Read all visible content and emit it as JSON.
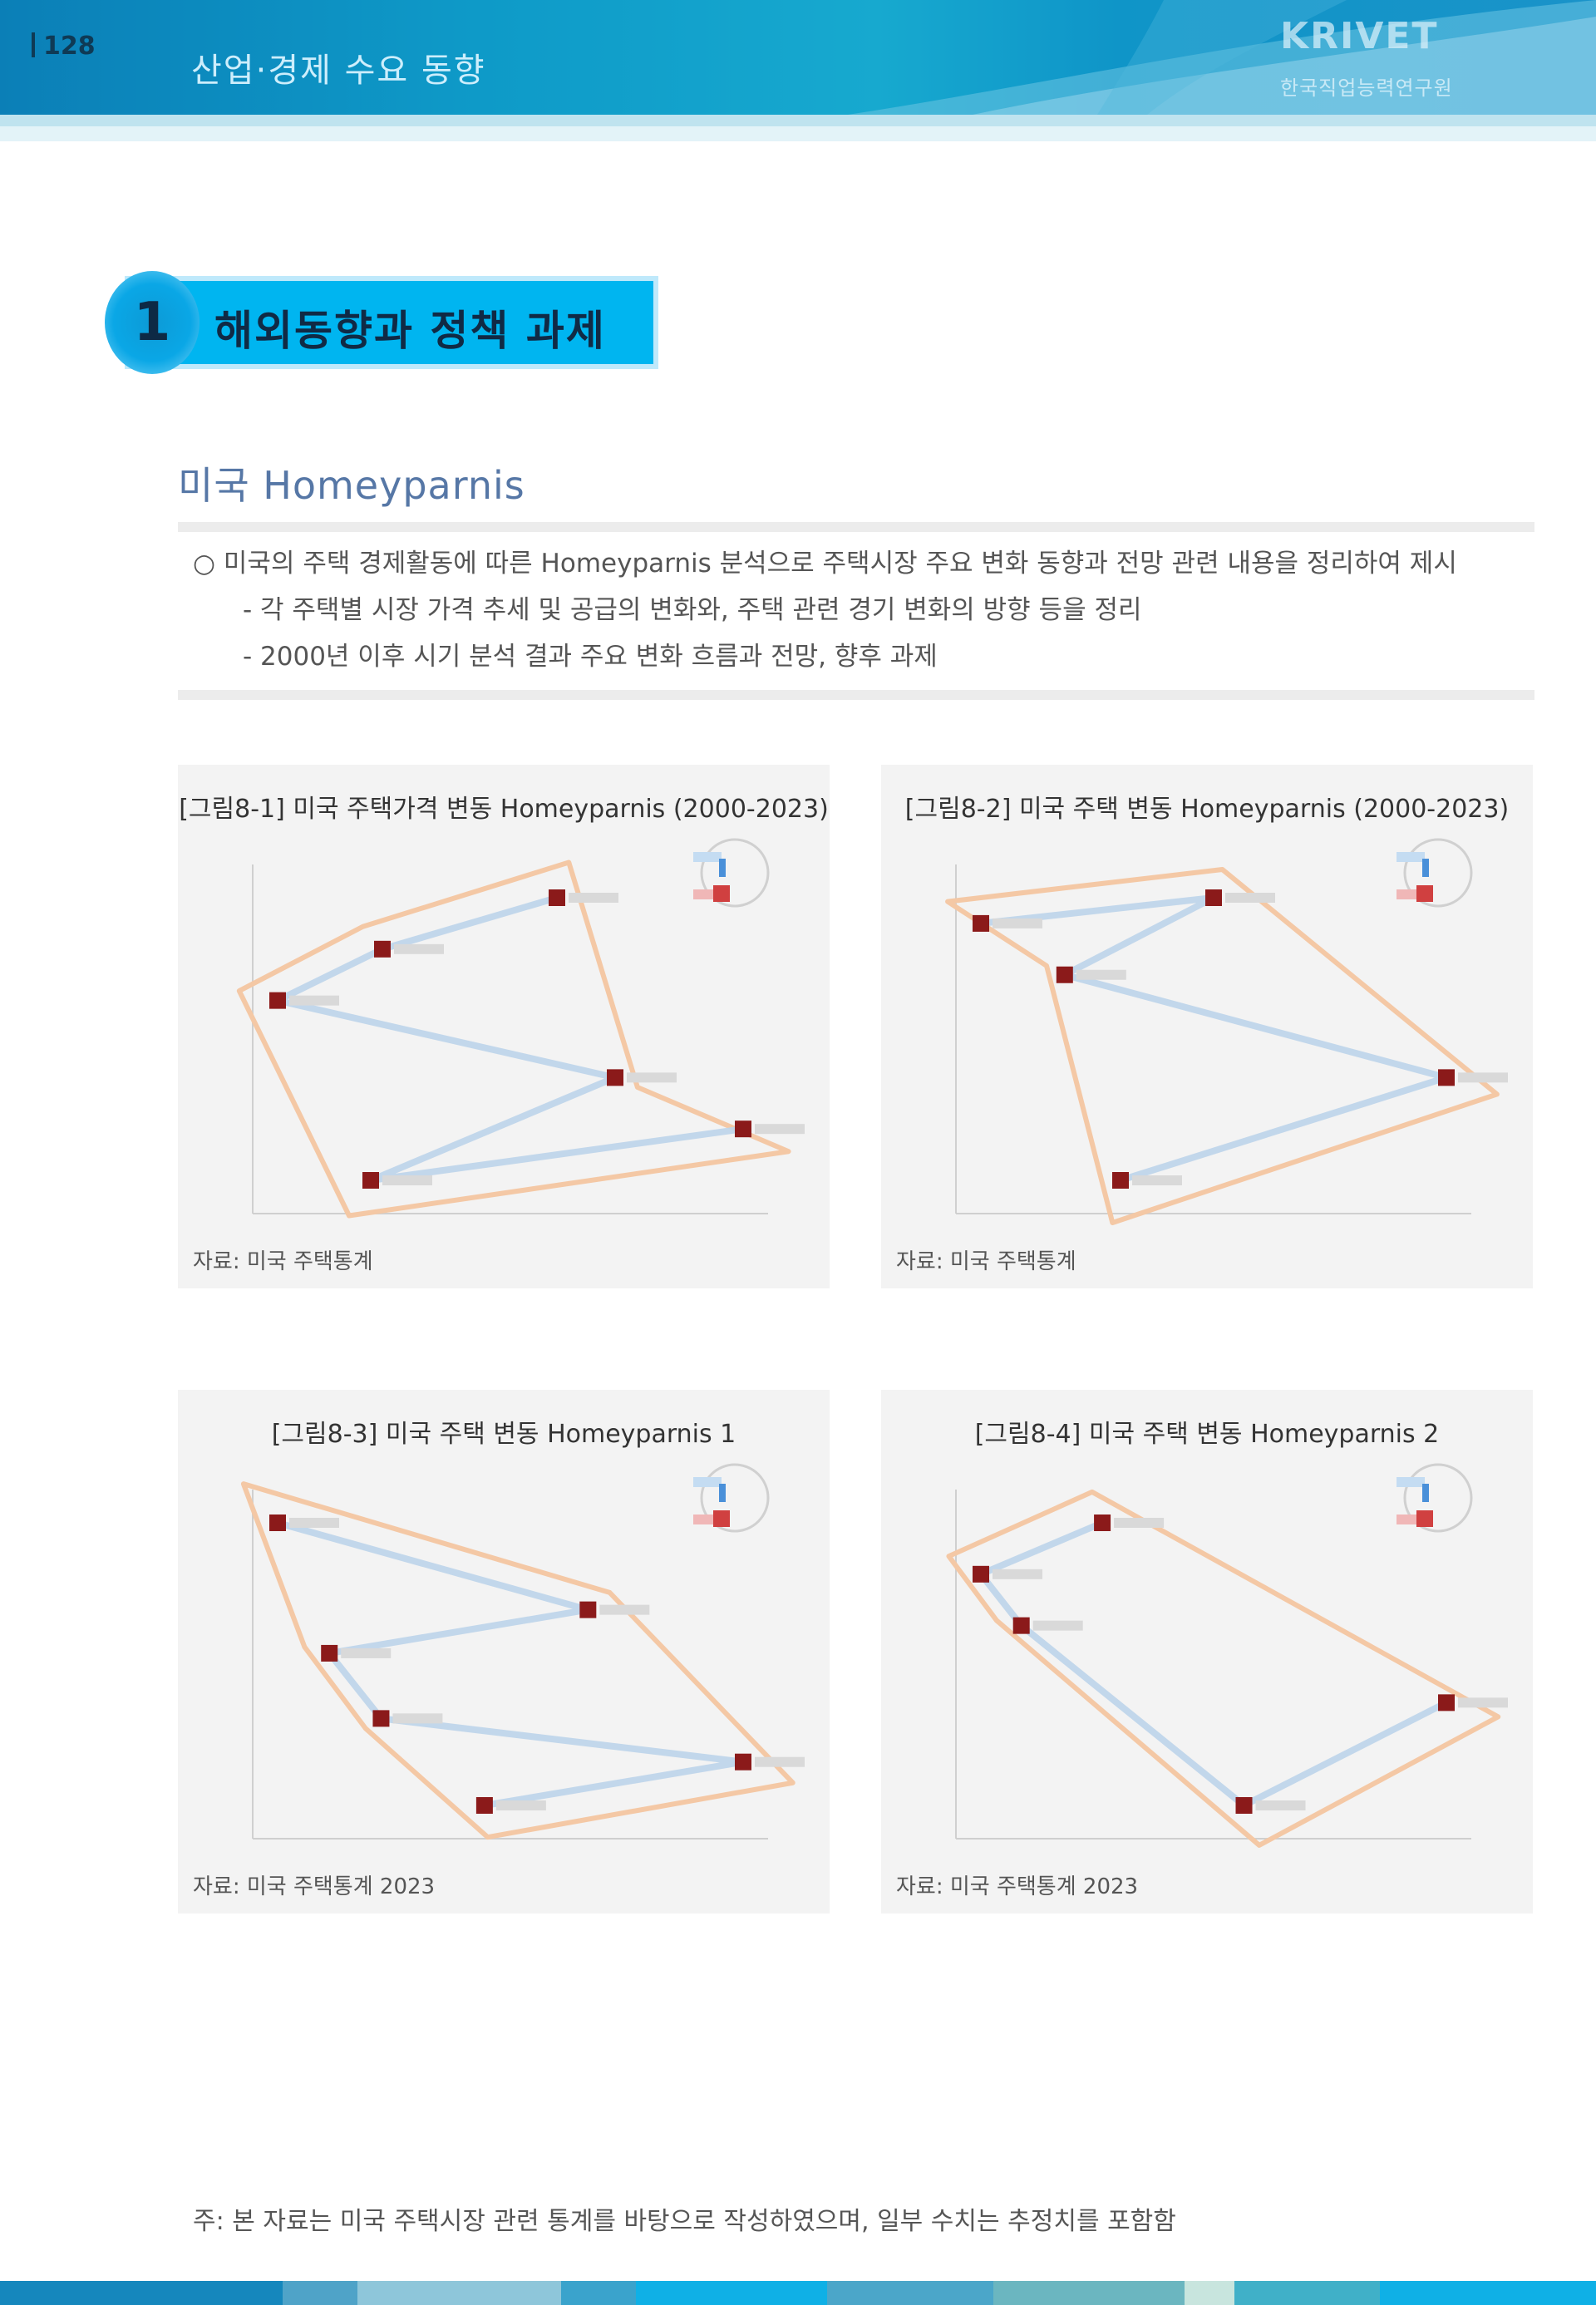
{
  "header": {
    "page_number": "128",
    "title": "산업·경제 수요 동향",
    "logo_main": "KRIVET",
    "logo_sub": "한국직업능력연구원"
  },
  "section": {
    "number": "1",
    "title": "해외동향과 정책 과제"
  },
  "subheading": "미국 Homeyparnis",
  "bullets": [
    "○ 미국의 주택 경제활동에 따른 Homeyparnis 분석으로 주택시장 주요 변화 동향과 전망 관련 내용을 정리하여 제시",
    "- 각 주택별 시장 가격 추세 및 공급의 변화와, 주택 관련 경기 변화의 방향 등을 정리",
    "- 2000년 이후 시기 분석 결과 주요 변화 흐름과 전망, 향후 과제"
  ],
  "panels": [
    {
      "title": "[그림8-1] 미국 주택가격 변동 Homeyparnis (2000-2023)",
      "source": "자료: 미국 주택통계"
    },
    {
      "title": "[그림8-2] 미국 주택 변동 Homeyparnis (2000-2023)",
      "source": "자료: 미국 주택통계"
    },
    {
      "title": "[그림8-3] 미국 주택 변동 Homeyparnis 1",
      "source": "자료: 미국 주택통계 2023"
    },
    {
      "title": "[그림8-4] 미국 주택 변동 Homeyparnis 2",
      "source": "자료: 미국 주택통계 2023"
    }
  ],
  "footnote": "주: 본 자료는 미국 주택시장 관련 통계를 바탕으로 작성하였으며, 일부 수치는 추정치를 포함함",
  "colors": {
    "accent": "#00b5f0",
    "series_line": "#bcd4ea",
    "envelope": "#f4c8a5",
    "marker": "#8b1a1a",
    "legend_blue": "#4a90d9",
    "legend_red": "#d04040"
  },
  "chart_data": [
    {
      "type": "scatter",
      "title": "[그림8-1] 미국 주택가격 변동 Homeyparnis (2000-2023)",
      "series": [
        {
          "values": [
            [
              3.9,
              5.65
            ],
            [
              2.4,
              5.55
            ],
            [
              1.5,
              5.45
            ],
            [
              4.4,
              5.3
            ],
            [
              2.3,
              5.1
            ],
            [
              5.5,
              5.2
            ]
          ]
        }
      ]
    },
    {
      "type": "scatter",
      "title": "[그림8-2] 미국 주택 변동 Homeyparnis (2000-2023)",
      "series": [
        {
          "values": [
            [
              2.0,
              5.6
            ],
            [
              7.0,
              5.65
            ],
            [
              3.8,
              5.5
            ],
            [
              12.0,
              5.3
            ],
            [
              5.0,
              5.1
            ]
          ]
        }
      ]
    },
    {
      "type": "scatter",
      "title": "[그림8-3] 미국 주택 변동 Homeyparnis 1",
      "series": [
        {
          "values": [
            [
              1.0,
              6.2
            ],
            [
              7.0,
              5.8
            ],
            [
              2.0,
              5.6
            ],
            [
              3.0,
              5.3
            ],
            [
              10.0,
              5.1
            ],
            [
              5.0,
              4.9
            ]
          ]
        }
      ]
    },
    {
      "type": "scatter",
      "title": "[그림8-4] 미국 주택 변동 Homeyparnis 2",
      "series": [
        {
          "values": [
            [
              4.5,
              6.1
            ],
            [
              1.5,
              5.9
            ],
            [
              2.5,
              5.7
            ],
            [
              8.0,
              5.0
            ],
            [
              13.0,
              5.4
            ]
          ]
        }
      ]
    }
  ]
}
